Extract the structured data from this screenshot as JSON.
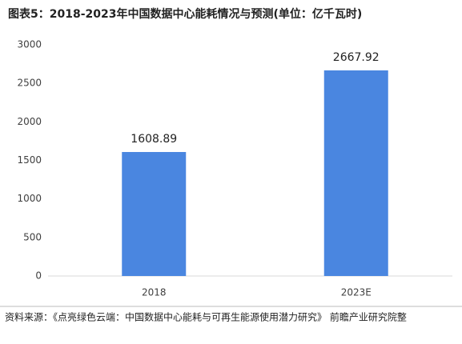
{
  "chart_data": {
    "type": "bar",
    "title": "图表5：2018-2023年中国数据中心能耗情况与预测(单位：亿千瓦时)",
    "categories": [
      "2018",
      "2023E"
    ],
    "values": [
      1608.89,
      2667.92
    ],
    "color": "#4a86e0",
    "ylim": [
      0,
      3000
    ],
    "yticks": [
      0,
      500,
      1000,
      1500,
      2000,
      2500,
      3000
    ],
    "grid": false,
    "source": "资料来源：《点亮绿色云端：中国数据中心能耗与可再生能源使用潜力研究》 前瞻产业研究院整"
  }
}
